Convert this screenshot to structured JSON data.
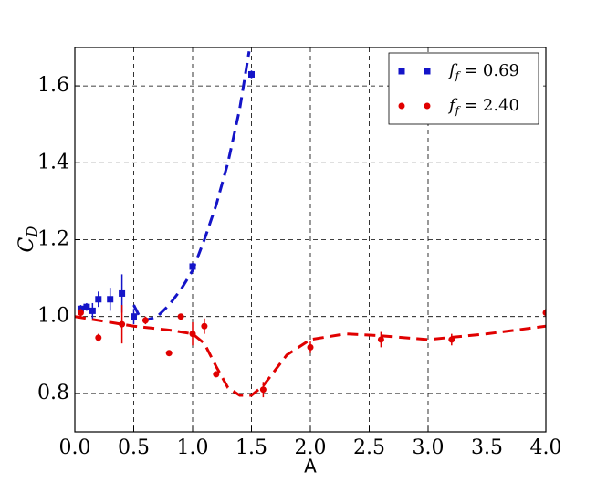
{
  "chart_data": {
    "type": "scatter",
    "xlabel": "A",
    "ylabel": "C",
    "ylabel_sub": "D",
    "xlim": [
      0,
      4
    ],
    "ylim": [
      0.7,
      1.7
    ],
    "xticks": [
      {
        "value": 0,
        "label": "0.0"
      },
      0.5,
      {
        "value": 1,
        "label": "1.0"
      },
      1.5,
      {
        "value": 2,
        "label": "2.0"
      },
      2.5,
      {
        "value": 3,
        "label": "3.0"
      },
      3.5,
      {
        "value": 4,
        "label": "4.0"
      }
    ],
    "yticks": [
      0.8,
      {
        "value": 1,
        "label": "1.0"
      },
      1.2,
      1.4,
      1.6
    ],
    "grid": true,
    "legend": "upper right",
    "series": [
      {
        "name": "f",
        "name_sub": "f",
        "name_tail": "= 0.69",
        "color": "#1414c8",
        "marker": "square",
        "x": [
          0.05,
          0.1,
          0.15,
          0.2,
          0.3,
          0.4,
          0.5,
          1.0,
          1.5
        ],
        "values": [
          1.02,
          1.025,
          1.015,
          1.045,
          1.045,
          1.06,
          1.0,
          1.13,
          1.63
        ],
        "errors": [
          0.01,
          0.01,
          0.02,
          0.02,
          0.03,
          0.05,
          0.02,
          0.01,
          0.01
        ]
      },
      {
        "name": "f",
        "name_sub": "f",
        "name_tail": "= 2.40",
        "color": "#e00000",
        "marker": "circle",
        "x": [
          0.05,
          0.2,
          0.4,
          0.6,
          0.8,
          0.9,
          1.0,
          1.1,
          1.2,
          1.6,
          2.0,
          2.6,
          3.2,
          4.0
        ],
        "values": [
          1.01,
          0.945,
          0.98,
          0.99,
          0.905,
          1.0,
          0.955,
          0.975,
          0.85,
          0.81,
          0.92,
          0.94,
          0.94,
          1.01
        ],
        "errors": [
          0.01,
          0.01,
          0.05,
          0.01,
          0.005,
          0.005,
          0.03,
          0.02,
          0.005,
          0.02,
          0.015,
          0.02,
          0.015,
          0.01
        ]
      }
    ],
    "fits": [
      {
        "color": "#1414c8",
        "x": [
          0.5,
          0.55,
          0.6,
          0.7,
          0.8,
          0.9,
          1.0,
          1.1,
          1.2,
          1.3,
          1.4,
          1.48
        ],
        "values": [
          1.03,
          1.0,
          0.99,
          1.0,
          1.03,
          1.07,
          1.12,
          1.2,
          1.29,
          1.4,
          1.54,
          1.69
        ]
      },
      {
        "color": "#e00000",
        "x": [
          0,
          0.5,
          0.8,
          1.0,
          1.1,
          1.2,
          1.3,
          1.4,
          1.5,
          1.6,
          1.8,
          2.0,
          2.3,
          2.6,
          3.0,
          3.5,
          4.0
        ],
        "values": [
          1.0,
          0.975,
          0.965,
          0.955,
          0.93,
          0.87,
          0.815,
          0.795,
          0.795,
          0.82,
          0.9,
          0.94,
          0.955,
          0.95,
          0.94,
          0.955,
          0.975
        ]
      }
    ]
  }
}
